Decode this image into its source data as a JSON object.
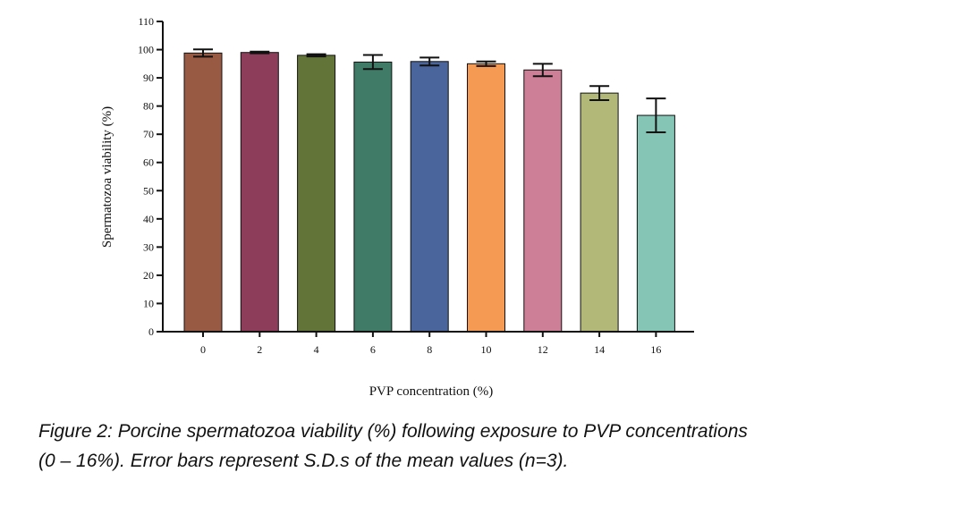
{
  "chart_data": {
    "type": "bar",
    "categories": [
      "0",
      "2",
      "4",
      "6",
      "8",
      "10",
      "12",
      "14",
      "16"
    ],
    "values": [
      98.8,
      99.0,
      98.0,
      95.6,
      95.8,
      95.0,
      92.8,
      84.6,
      76.7
    ],
    "error": [
      1.3,
      0.3,
      0.4,
      2.5,
      1.4,
      0.8,
      2.2,
      2.5,
      6.0
    ],
    "colors": [
      "#985a43",
      "#8d3d5a",
      "#627437",
      "#3f7b67",
      "#49659c",
      "#f49a53",
      "#cc7f96",
      "#b2b878",
      "#84c5b5"
    ],
    "xlabel": "PVP concentration (%)",
    "ylabel": "Spermatozoa viability (%)",
    "ylim": [
      0,
      110
    ],
    "yticks": [
      0,
      10,
      20,
      30,
      40,
      50,
      60,
      70,
      80,
      90,
      100,
      110
    ],
    "grid": false,
    "legend": "none"
  },
  "caption": {
    "line1": "Figure 2: Porcine spermatozoa viability (%) following exposure to PVP concentrations",
    "line2": "(0 – 16%). Error bars represent S.D.s of the mean values (n=3)."
  }
}
